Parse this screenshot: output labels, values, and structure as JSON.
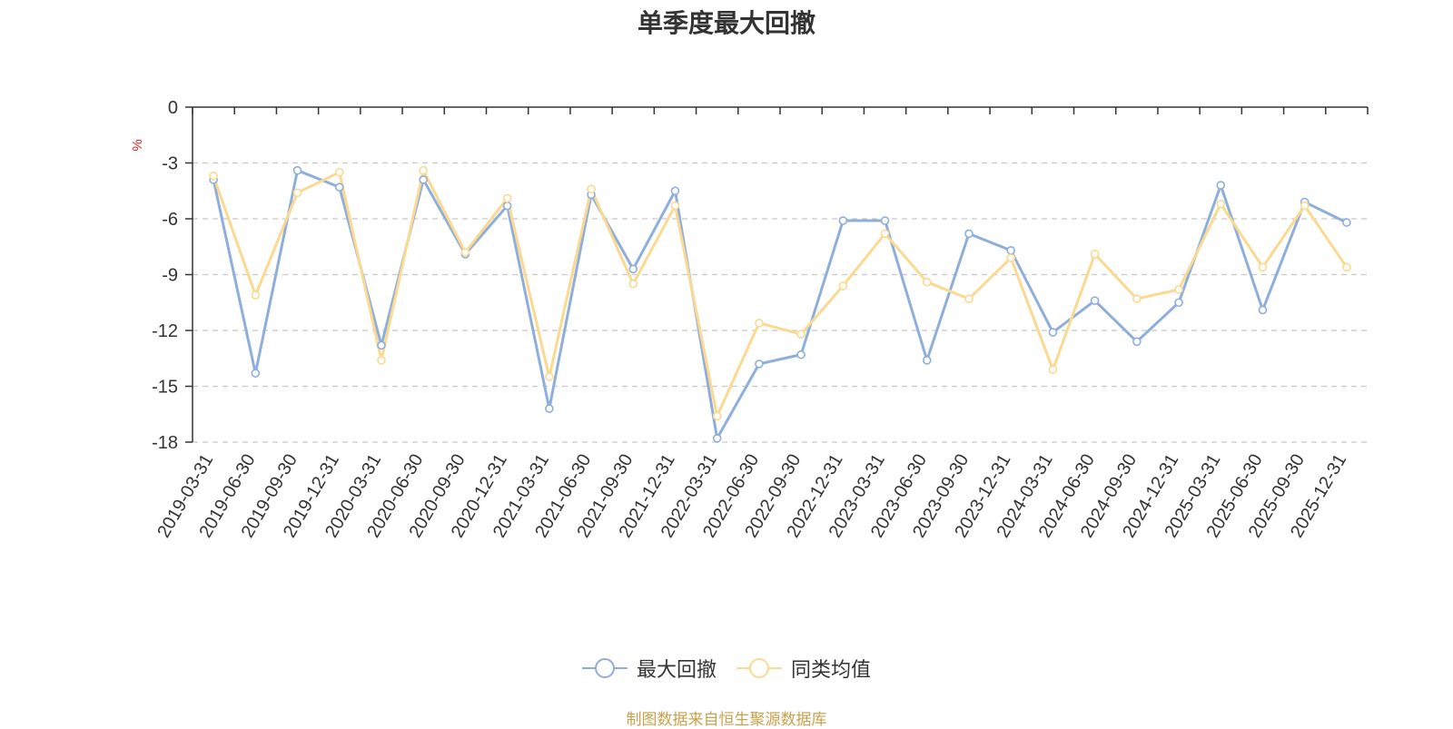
{
  "chart_data": {
    "type": "line",
    "title": "单季度最大回撤",
    "ylabel": "%",
    "ylim": [
      -18,
      0
    ],
    "yticks": [
      0,
      -3,
      -6,
      -9,
      -12,
      -15,
      -18
    ],
    "grid": true,
    "legend_position": "bottom-center",
    "categories": [
      "2019-03-31",
      "2019-06-30",
      "2019-09-30",
      "2019-12-31",
      "2020-03-31",
      "2020-06-30",
      "2020-09-30",
      "2020-12-31",
      "2021-03-31",
      "2021-06-30",
      "2021-09-30",
      "2021-12-31",
      "2022-03-31",
      "2022-06-30",
      "2022-09-30",
      "2022-12-31",
      "2023-03-31",
      "2023-06-30",
      "2023-09-30",
      "2023-12-31",
      "2024-03-31",
      "2024-06-30",
      "2024-09-30",
      "2024-12-31",
      "2025-03-31",
      "2025-06-30",
      "2025-09-30",
      "2025-12-31"
    ],
    "series": [
      {
        "name": "最大回撤",
        "color": "#8eaedc",
        "values": [
          -3.9,
          -14.3,
          -3.4,
          -4.3,
          -12.8,
          -3.9,
          -7.9,
          -5.3,
          -16.2,
          -4.7,
          -8.7,
          -4.5,
          -17.8,
          -13.8,
          -13.3,
          -6.1,
          -6.1,
          -13.6,
          -6.8,
          -7.7,
          -12.1,
          -10.4,
          -12.6,
          -10.5,
          -4.2,
          -10.9,
          -5.1,
          -6.2
        ]
      },
      {
        "name": "同类均值",
        "color": "#fbd990",
        "values": [
          -3.7,
          -10.1,
          -4.6,
          -3.5,
          -13.6,
          -3.4,
          -7.8,
          -4.9,
          -14.5,
          -4.4,
          -9.5,
          -5.3,
          -16.6,
          -11.6,
          -12.2,
          -9.6,
          -6.8,
          -9.4,
          -10.3,
          -8.1,
          -14.1,
          -7.9,
          -10.3,
          -9.8,
          -5.2,
          -8.6,
          -5.3,
          -8.6
        ]
      }
    ]
  },
  "source_text": "制图数据来自恒生聚源数据库"
}
